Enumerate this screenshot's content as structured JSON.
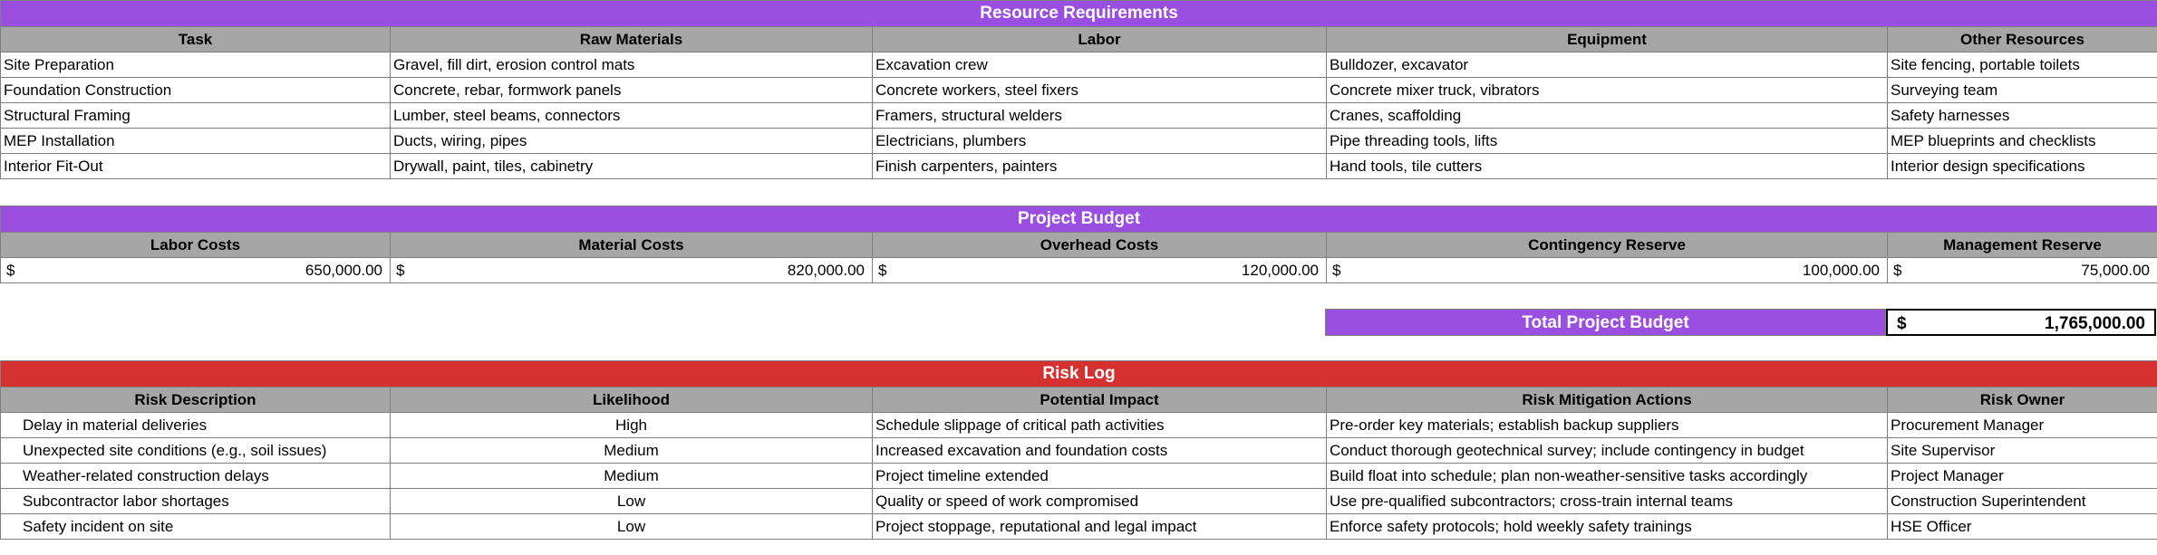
{
  "resources": {
    "title": "Resource Requirements",
    "headers": [
      "Task",
      "Raw Materials",
      "Labor",
      "Equipment",
      "Other Resources"
    ],
    "rows": [
      [
        "Site Preparation",
        "Gravel, fill dirt, erosion control mats",
        "Excavation crew",
        "Bulldozer, excavator",
        "Site fencing, portable toilets"
      ],
      [
        "Foundation Construction",
        "Concrete, rebar, formwork panels",
        "Concrete workers, steel fixers",
        "Concrete mixer truck, vibrators",
        "Surveying team"
      ],
      [
        "Structural Framing",
        "Lumber, steel beams, connectors",
        "Framers, structural welders",
        "Cranes, scaffolding",
        "Safety harnesses"
      ],
      [
        "MEP Installation",
        "Ducts, wiring, pipes",
        "Electricians, plumbers",
        "Pipe threading tools, lifts",
        "MEP blueprints and checklists"
      ],
      [
        "Interior Fit-Out",
        "Drywall, paint, tiles, cabinetry",
        "Finish carpenters, painters",
        "Hand tools, tile cutters",
        "Interior design specifications"
      ]
    ]
  },
  "budget": {
    "title": "Project Budget",
    "headers": [
      "Labor Costs",
      "Material Costs",
      "Overhead Costs",
      "Contingency Reserve",
      "Management Reserve"
    ],
    "currency": "$",
    "values": [
      "650,000.00",
      "820,000.00",
      "120,000.00",
      "100,000.00",
      "75,000.00"
    ],
    "total_label": "Total Project Budget",
    "total_value": "1,765,000.00"
  },
  "risks": {
    "title": "Risk Log",
    "headers": [
      "Risk Description",
      "Likelihood",
      "Potential Impact",
      "Risk Mitigation Actions",
      "Risk Owner"
    ],
    "rows": [
      [
        "Delay in material deliveries",
        "High",
        "Schedule slippage of critical path activities",
        "Pre-order key materials; establish backup suppliers",
        "Procurement Manager"
      ],
      [
        "Unexpected site conditions (e.g., soil issues)",
        "Medium",
        "Increased excavation and foundation costs",
        "Conduct thorough geotechnical survey; include contingency in budget",
        "Site Supervisor"
      ],
      [
        "Weather-related construction delays",
        "Medium",
        "Project timeline extended",
        "Build float into schedule; plan non-weather-sensitive tasks accordingly",
        "Project Manager"
      ],
      [
        "Subcontractor labor shortages",
        "Low",
        "Quality or speed of work compromised",
        "Use pre-qualified subcontractors; cross-train internal teams",
        "Construction Superintendent"
      ],
      [
        "Safety incident on site",
        "Low",
        "Project stoppage, reputational and legal impact",
        "Enforce safety protocols; hold weekly safety trainings",
        "HSE Officer"
      ]
    ]
  },
  "colors": {
    "purple": "#9a4fe0",
    "red": "#d63131",
    "header_gray": "#a6a6a6"
  }
}
